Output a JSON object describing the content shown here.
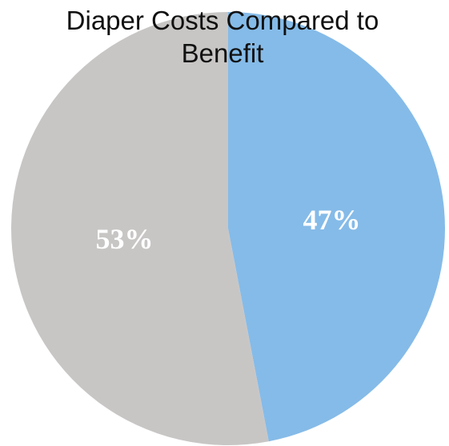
{
  "chart_data": {
    "type": "pie",
    "title": "Diaper Costs Compared to Benefit",
    "title_lines": [
      "Diaper Costs Compared to",
      "Benefit"
    ],
    "slices": [
      {
        "value": 47,
        "label": "47%",
        "color": "#85bbe8"
      },
      {
        "value": 53,
        "label": "53%",
        "color": "#c8c6c5"
      }
    ],
    "start_angle_deg": 0,
    "direction": "clockwise",
    "legend": "none"
  }
}
